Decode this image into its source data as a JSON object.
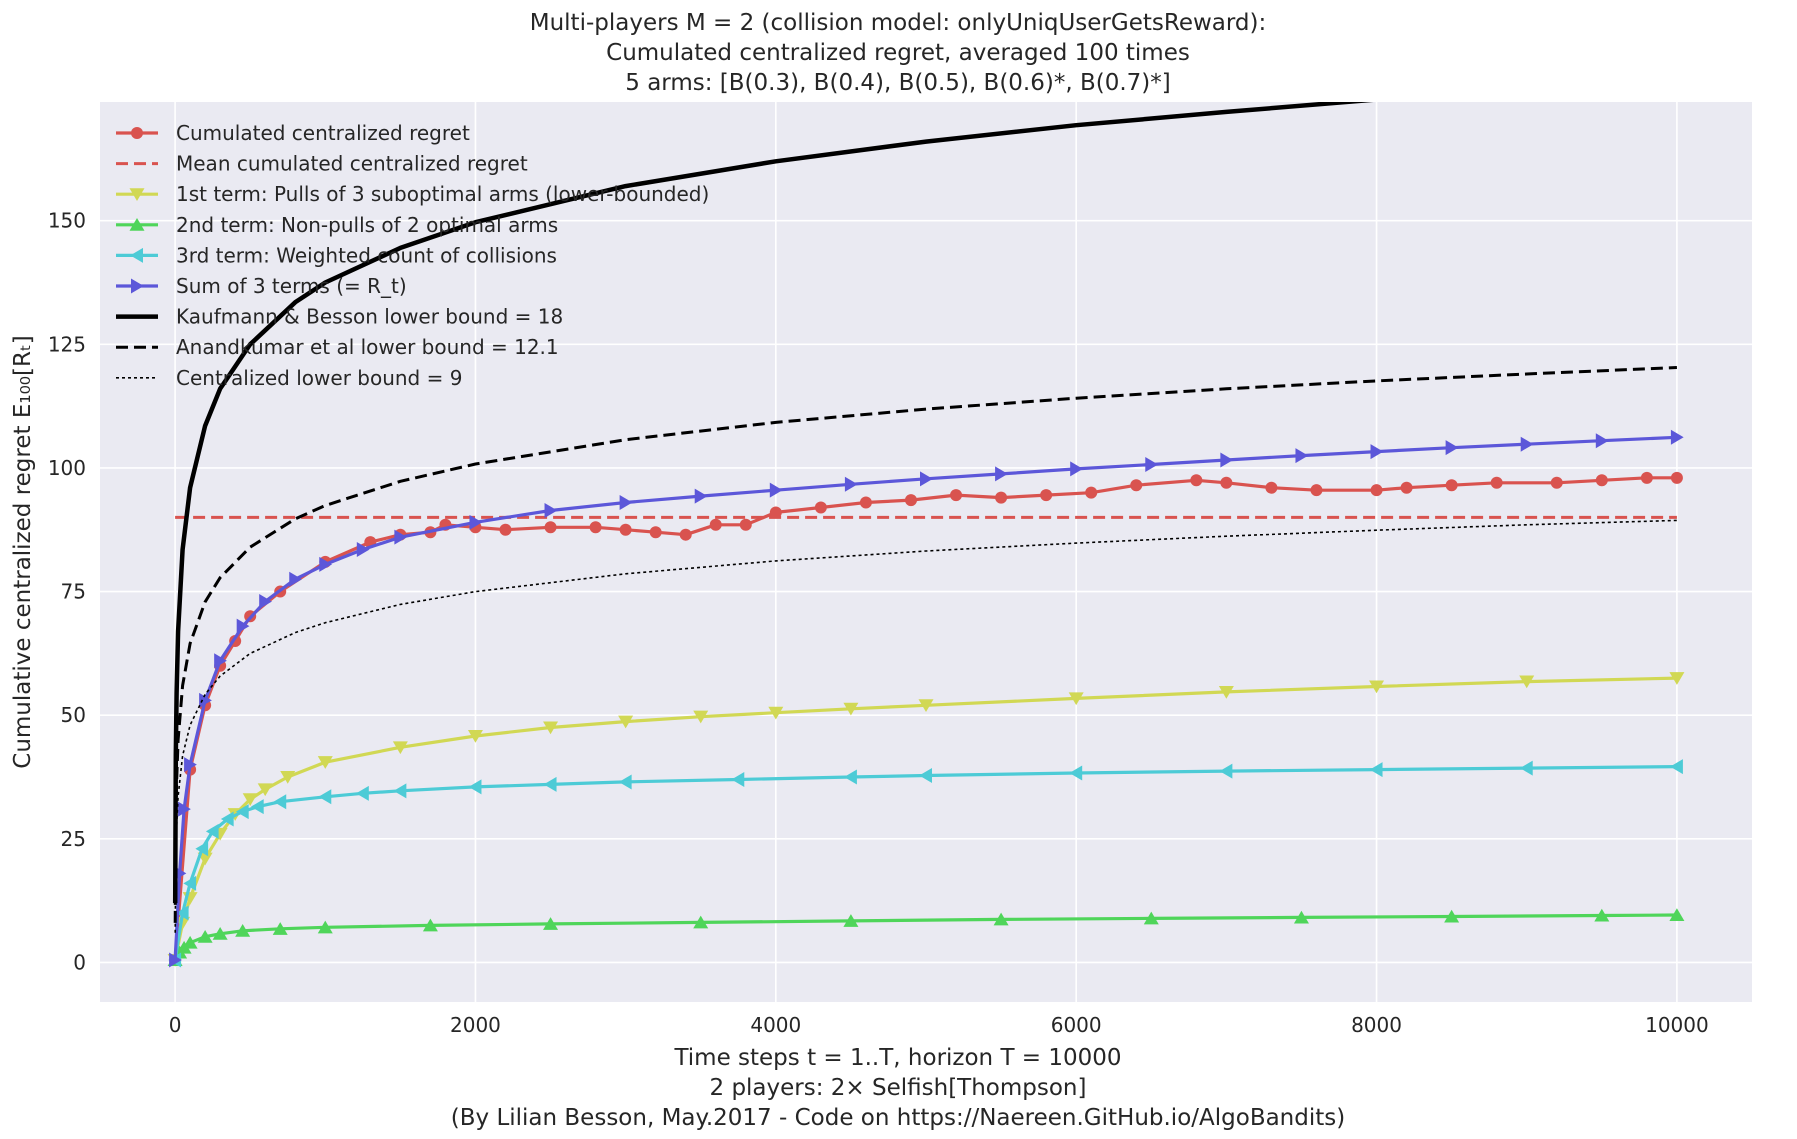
{
  "chart_data": {
    "type": "line",
    "title": [
      "Multi-players M = 2 (collision model: onlyUniqUserGetsReward):",
      "Cumulated centralized regret, averaged 100 times",
      "5 arms: [B(0.3), B(0.4), B(0.5), B(0.6)*, B(0.7)*]"
    ],
    "xlabel": [
      "Time steps t = 1..T, horizon T = 10000",
      "2 players: 2× Selfish[Thompson]",
      "(By Lilian Besson, May.2017 - Code on https://Naereen.GitHub.io/AlgoBandits)"
    ],
    "ylabel": "Cumulative centralized regret E₁₀₀[Rₜ]",
    "xlim": [
      -500,
      10500
    ],
    "ylim": [
      -8,
      174
    ],
    "xticks": [
      0,
      2000,
      4000,
      6000,
      8000,
      10000
    ],
    "yticks": [
      0,
      25,
      50,
      75,
      100,
      125,
      150
    ],
    "grid": true,
    "legend_position": "top-left",
    "background": "#eaeaf2",
    "series": [
      {
        "name": "Cumulated centralized regret",
        "color": "#d9534f",
        "style": "solid",
        "marker": "circle",
        "x": [
          0,
          100,
          200,
          300,
          400,
          500,
          700,
          1000,
          1300,
          1500,
          1700,
          1800,
          2000,
          2200,
          2500,
          2800,
          3000,
          3200,
          3400,
          3600,
          3800,
          4000,
          4300,
          4600,
          4900,
          5200,
          5500,
          5800,
          6100,
          6400,
          6800,
          7000,
          7300,
          7600,
          8000,
          8200,
          8500,
          8800,
          9200,
          9500,
          9800,
          10000
        ],
        "y": [
          0.5,
          39,
          52,
          60,
          65,
          70,
          75,
          81,
          85,
          86.5,
          87,
          88.5,
          88,
          87.5,
          88,
          88,
          87.5,
          87,
          86.5,
          88.5,
          88.5,
          91,
          92,
          93,
          93.5,
          94.5,
          94,
          94.5,
          95,
          96.5,
          97.5,
          97,
          96,
          95.5,
          95.5,
          96,
          96.5,
          97,
          97,
          97.5,
          98,
          98
        ]
      },
      {
        "name": "Mean cumulated centralized regret",
        "color": "#d9534f",
        "style": "dashed",
        "marker": "none",
        "x": [
          0,
          10000
        ],
        "y": [
          90,
          90
        ]
      },
      {
        "name": " 1st term: Pulls of 3 suboptimal arms (lower-bounded)",
        "color": "#d1d854",
        "style": "solid",
        "marker": "triangle-down",
        "x": [
          0,
          50,
          100,
          200,
          300,
          400,
          500,
          600,
          750,
          1000,
          1500,
          2000,
          2500,
          3000,
          3500,
          4000,
          4500,
          5000,
          6000,
          7000,
          8000,
          9000,
          10000
        ],
        "y": [
          0.5,
          8,
          13,
          21,
          26,
          30,
          33,
          35,
          37.5,
          40.5,
          43.5,
          45.8,
          47.5,
          48.7,
          49.7,
          50.5,
          51.3,
          52,
          53.4,
          54.7,
          55.8,
          56.8,
          57.5
        ]
      },
      {
        "name": " 2nd term: Non-pulls of 2 optimal arms",
        "color": "#4fd55a",
        "style": "solid",
        "marker": "triangle-up",
        "x": [
          0,
          30,
          60,
          100,
          200,
          300,
          450,
          700,
          1000,
          1700,
          2500,
          3500,
          4500,
          5500,
          6500,
          7500,
          8500,
          9500,
          10000
        ],
        "y": [
          0.5,
          2,
          3,
          4,
          5.2,
          5.8,
          6.4,
          6.8,
          7.1,
          7.5,
          7.8,
          8.1,
          8.4,
          8.7,
          8.9,
          9.1,
          9.3,
          9.5,
          9.6
        ]
      },
      {
        "name": " 3rd term: Weighted count of collisions",
        "color": "#4dcbd6",
        "style": "solid",
        "marker": "triangle-left",
        "x": [
          0,
          50,
          100,
          180,
          250,
          350,
          450,
          550,
          700,
          1000,
          1250,
          1500,
          2000,
          2500,
          3000,
          3750,
          4500,
          5000,
          6000,
          7000,
          8000,
          9000,
          10000
        ],
        "y": [
          0.5,
          10,
          16,
          23,
          26.5,
          29,
          30.5,
          31.5,
          32.5,
          33.5,
          34.2,
          34.7,
          35.5,
          36,
          36.5,
          37,
          37.5,
          37.8,
          38.3,
          38.7,
          39,
          39.3,
          39.6
        ]
      },
      {
        "name": "Sum of 3 terms (= R_t)",
        "color": "#5c57d9",
        "style": "solid",
        "marker": "triangle-right",
        "x": [
          0,
          30,
          60,
          100,
          200,
          300,
          450,
          600,
          800,
          1000,
          1250,
          1500,
          2000,
          2500,
          3000,
          3500,
          4000,
          4500,
          5000,
          5500,
          6000,
          6500,
          7000,
          7500,
          8000,
          8500,
          9000,
          9500,
          10000
        ],
        "y": [
          0.5,
          18,
          31,
          40,
          53,
          61,
          68,
          73,
          77.5,
          80.5,
          83.5,
          86,
          89,
          91.4,
          93,
          94.3,
          95.5,
          96.7,
          97.8,
          98.8,
          99.8,
          100.7,
          101.6,
          102.5,
          103.3,
          104.1,
          104.8,
          105.5,
          106.2
        ]
      },
      {
        "name": "Kaufmann & Besson lower bound = 18",
        "color": "#000000",
        "style": "solid-thick",
        "marker": "none",
        "x": [
          1,
          5,
          10,
          20,
          50,
          100,
          200,
          300,
          500,
          800,
          1000,
          1500,
          2000,
          3000,
          4000,
          5000,
          6000,
          7000,
          8000,
          9000,
          10000
        ],
        "y": [
          12,
          42,
          54.5,
          67,
          83.5,
          96,
          108.5,
          116,
          125,
          133.5,
          137.5,
          144.5,
          149.7,
          157,
          162,
          166,
          169.3,
          172,
          174.5,
          176.5,
          178.5
        ]
      },
      {
        "name": "Anandkumar et al lower bound = 12.1",
        "color": "#000000",
        "style": "dashed",
        "marker": "none",
        "x": [
          1,
          5,
          10,
          20,
          50,
          100,
          200,
          300,
          500,
          800,
          1000,
          1500,
          2000,
          3000,
          4000,
          5000,
          6000,
          7000,
          8000,
          9000,
          10000
        ],
        "y": [
          8,
          28,
          36.5,
          45,
          56,
          64.5,
          72.9,
          77.8,
          84,
          89.7,
          92.4,
          97.3,
          100.8,
          105.7,
          109.2,
          111.9,
          114.1,
          116,
          117.6,
          119,
          120.3
        ]
      },
      {
        "name": "Centralized lower bound = 9",
        "color": "#000000",
        "style": "dotted",
        "marker": "none",
        "x": [
          1,
          5,
          10,
          20,
          50,
          100,
          200,
          300,
          500,
          800,
          1000,
          1500,
          2000,
          3000,
          4000,
          5000,
          6000,
          7000,
          8000,
          9000,
          10000
        ],
        "y": [
          6,
          21,
          27.3,
          33.6,
          41.8,
          48,
          54.2,
          57.9,
          62.5,
          66.7,
          68.7,
          72.4,
          75,
          78.6,
          81.2,
          83.2,
          84.8,
          86.2,
          87.4,
          88.5,
          89.4
        ]
      }
    ]
  }
}
